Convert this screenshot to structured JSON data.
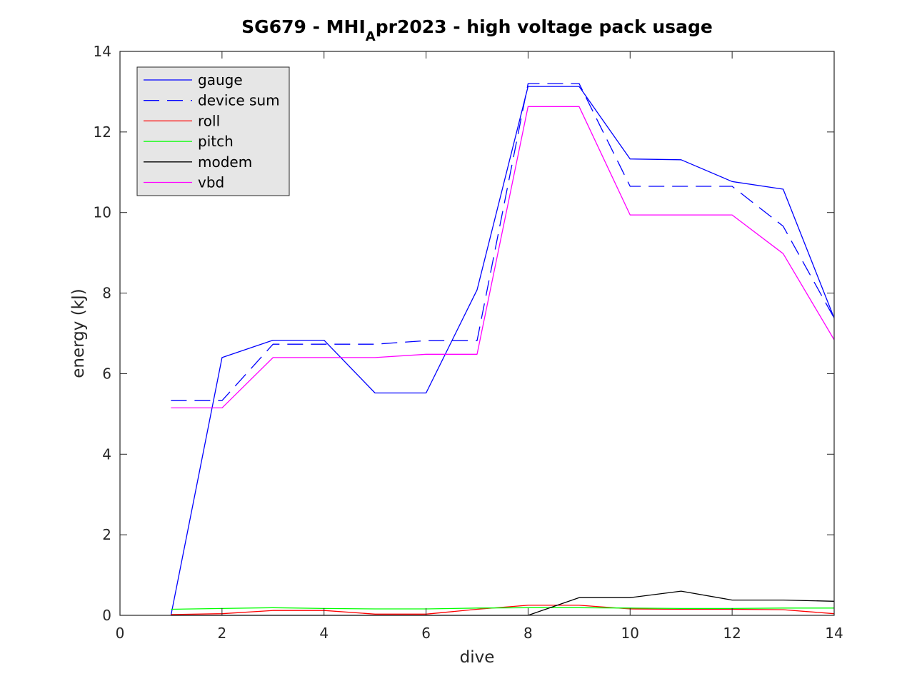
{
  "chart_data": {
    "type": "line",
    "title": {
      "before": "SG679 - MHI",
      "subscript": "A",
      "after": "pr2023 - high voltage pack usage"
    },
    "xlabel": "dive",
    "ylabel": "energy (kJ)",
    "xlim": [
      0,
      14
    ],
    "ylim": [
      0,
      14
    ],
    "xticks": [
      0,
      2,
      4,
      6,
      8,
      10,
      12,
      14
    ],
    "yticks": [
      0,
      2,
      4,
      6,
      8,
      10,
      12,
      14
    ],
    "legend_position": "top-left",
    "grid": false,
    "x": [
      1,
      2,
      3,
      4,
      5,
      6,
      7,
      8,
      9,
      10,
      11,
      12,
      13,
      14
    ],
    "series": [
      {
        "name": "gauge",
        "color": "#0000ff",
        "dash": "solid",
        "values": [
          0.0,
          6.4,
          6.83,
          6.83,
          5.52,
          5.52,
          8.08,
          13.13,
          13.13,
          11.33,
          11.31,
          10.77,
          10.58,
          7.38
        ]
      },
      {
        "name": "device sum",
        "color": "#0000ff",
        "dash": "dashed",
        "values": [
          5.33,
          5.33,
          6.73,
          6.73,
          6.73,
          6.82,
          6.82,
          13.2,
          13.2,
          10.65,
          10.65,
          10.65,
          9.66,
          7.38
        ]
      },
      {
        "name": "roll",
        "color": "#ff0000",
        "dash": "solid",
        "values": [
          0.02,
          0.04,
          0.12,
          0.12,
          0.03,
          0.03,
          0.15,
          0.25,
          0.25,
          0.16,
          0.15,
          0.15,
          0.14,
          0.04
        ]
      },
      {
        "name": "pitch",
        "color": "#00ff00",
        "dash": "solid",
        "values": [
          0.15,
          0.17,
          0.19,
          0.17,
          0.16,
          0.16,
          0.18,
          0.19,
          0.19,
          0.18,
          0.17,
          0.17,
          0.18,
          0.18
        ]
      },
      {
        "name": "modem",
        "color": "#000000",
        "dash": "solid",
        "values": [
          0.0,
          0.0,
          0.0,
          0.0,
          0.0,
          0.0,
          0.0,
          0.0,
          0.44,
          0.44,
          0.6,
          0.38,
          0.38,
          0.35
        ]
      },
      {
        "name": "vbd",
        "color": "#ff00ff",
        "dash": "solid",
        "values": [
          5.15,
          5.15,
          6.4,
          6.4,
          6.4,
          6.48,
          6.48,
          12.63,
          12.63,
          9.94,
          9.94,
          9.94,
          8.98,
          6.84
        ]
      }
    ]
  }
}
